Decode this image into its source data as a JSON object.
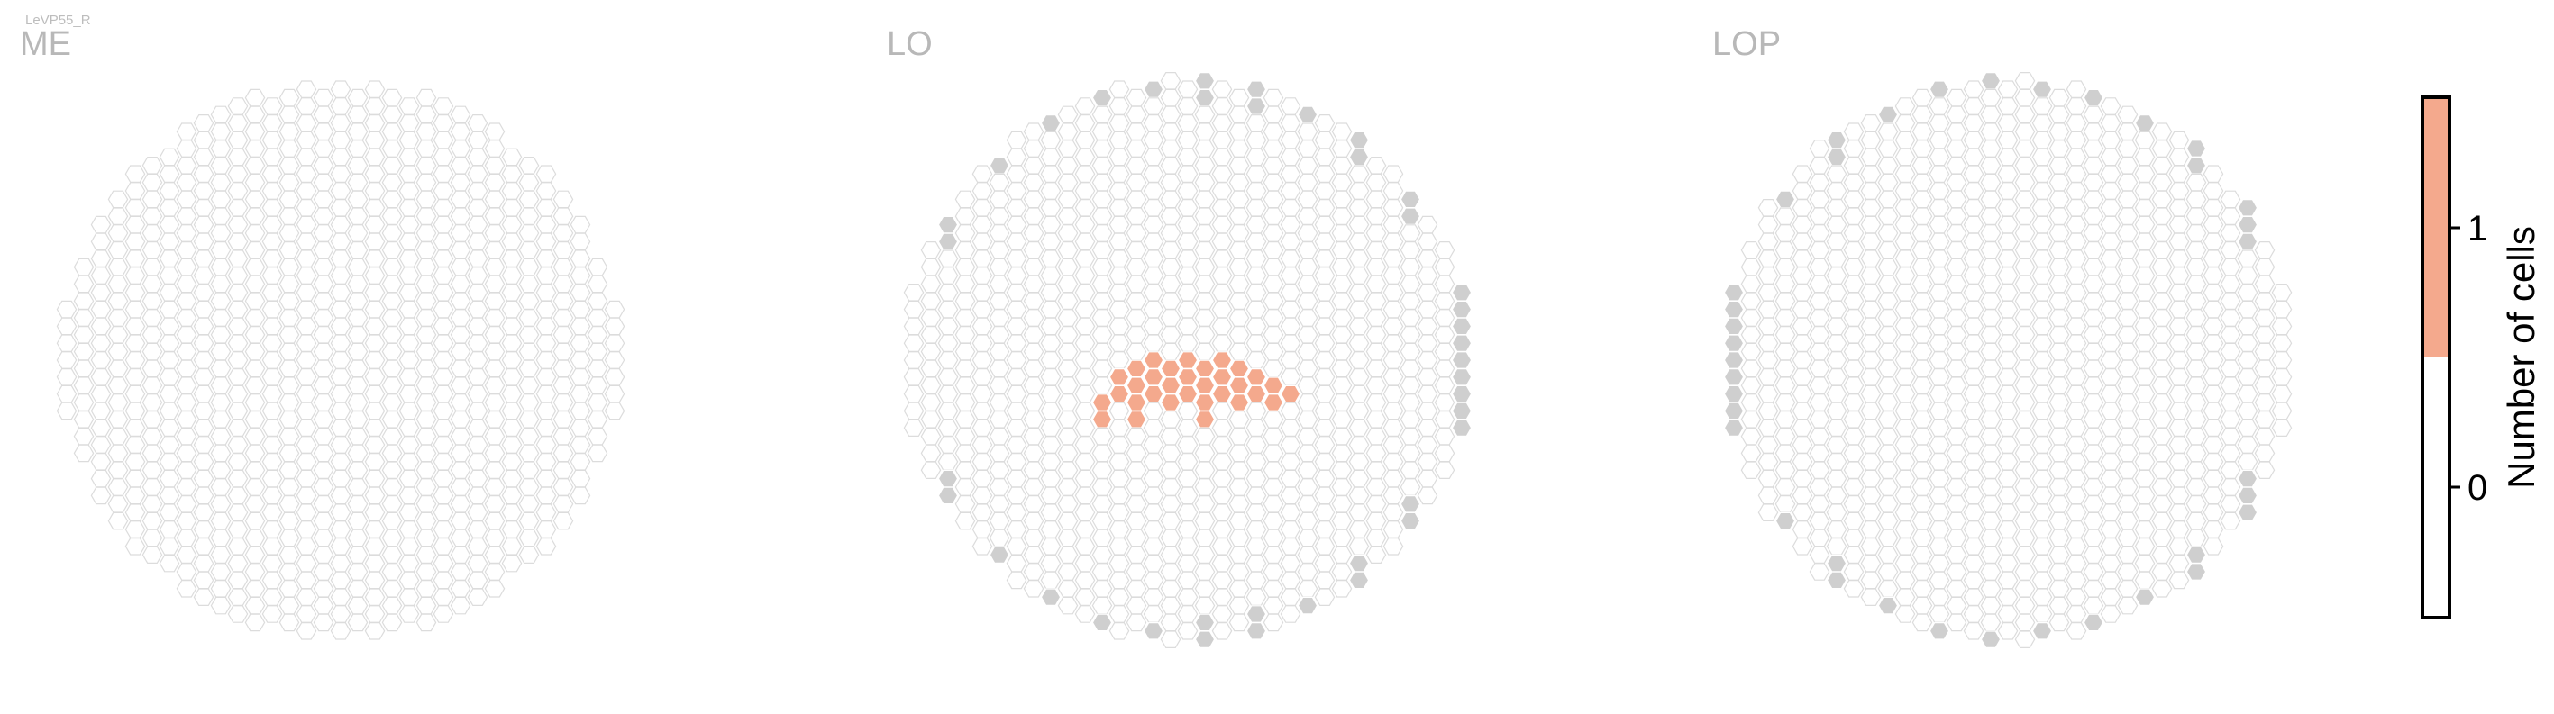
{
  "cell_type": "LeVP55_R",
  "colors": {
    "empty_outline": "#dcdcdc",
    "edge_gray": "#cfcfcf",
    "salmon": "#f4a98d",
    "text_gray": "#b8b8b8"
  },
  "chart_data": {
    "type": "heatmap",
    "subtype": "hexagonal-column-coverage",
    "colorbar": {
      "label": "Number of cells",
      "ticks": [
        0,
        1
      ],
      "range": [
        -0.5,
        1.5
      ],
      "segments": [
        {
          "from": -0.5,
          "to": 0.5,
          "color": "#ffffff"
        },
        {
          "from": 0.5,
          "to": 1.5,
          "color": "#f4a98d"
        }
      ]
    },
    "panels": [
      {
        "title": "ME",
        "filled_cells": []
      },
      {
        "title": "LO",
        "filled_cells": [
          {
            "hex": [
              6,
              2
            ],
            "value": 1
          },
          {
            "hex": [
              5,
              2
            ],
            "value": 1
          },
          {
            "hex": [
              5,
              1
            ],
            "value": 1
          },
          {
            "hex": [
              4,
              1
            ],
            "value": 1
          },
          {
            "hex": [
              4,
              2
            ],
            "value": 1
          },
          {
            "hex": [
              3,
              0
            ],
            "value": 1
          },
          {
            "hex": [
              3,
              1
            ],
            "value": 1
          },
          {
            "hex": [
              3,
              2
            ],
            "value": 1
          },
          {
            "hex": [
              2,
              0
            ],
            "value": 1
          },
          {
            "hex": [
              2,
              1
            ],
            "value": 1
          },
          {
            "hex": [
              2,
              2
            ],
            "value": 1
          },
          {
            "hex": [
              1,
              0
            ],
            "value": 1
          },
          {
            "hex": [
              1,
              1
            ],
            "value": 1
          },
          {
            "hex": [
              1,
              2
            ],
            "value": 1
          },
          {
            "hex": [
              1,
              3
            ],
            "value": 1
          },
          {
            "hex": [
              0,
              0
            ],
            "value": 1
          },
          {
            "hex": [
              0,
              1
            ],
            "value": 1
          },
          {
            "hex": [
              0,
              2
            ],
            "value": 1
          },
          {
            "hex": [
              -1,
              0
            ],
            "value": 1
          },
          {
            "hex": [
              -1,
              1
            ],
            "value": 1
          },
          {
            "hex": [
              -1,
              2
            ],
            "value": 1
          },
          {
            "hex": [
              -2,
              0
            ],
            "value": 1
          },
          {
            "hex": [
              -2,
              1
            ],
            "value": 1
          },
          {
            "hex": [
              -2,
              2
            ],
            "value": 1
          },
          {
            "hex": [
              -3,
              0
            ],
            "value": 1
          },
          {
            "hex": [
              -3,
              1
            ],
            "value": 1
          },
          {
            "hex": [
              -3,
              2
            ],
            "value": 1
          },
          {
            "hex": [
              -3,
              3
            ],
            "value": 1
          },
          {
            "hex": [
              -4,
              1
            ],
            "value": 1
          },
          {
            "hex": [
              -4,
              2
            ],
            "value": 1
          },
          {
            "hex": [
              -5,
              2
            ],
            "value": 1
          },
          {
            "hex": [
              -5,
              3
            ],
            "value": 1
          }
        ]
      },
      {
        "title": "LOP",
        "filled_cells": []
      }
    ]
  }
}
